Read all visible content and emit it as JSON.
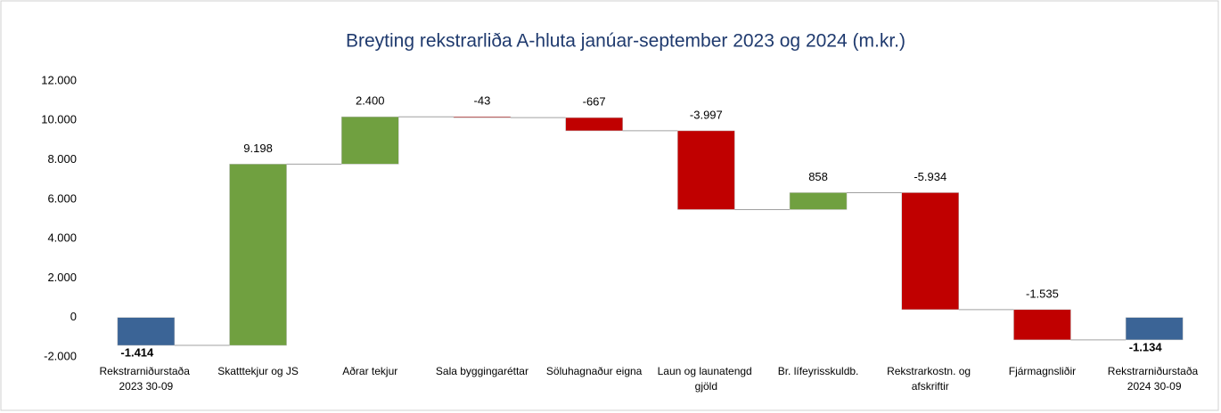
{
  "chart_data": {
    "type": "waterfall",
    "title": "Breyting rekstrarliða A-hluta janúar-september 2023 og 2024 (m.kr.)",
    "categories": [
      "Rekstrarniðurstaða 2023 30-09",
      "Skatttekjur og JS",
      "Aðrar tekjur",
      "Sala byggingaréttar",
      "Söluhagnaður eigna",
      "Laun og launatengd gjöld",
      "Br. lífeyrisskuldb.",
      "Rekstrarkostn. og afskriftir",
      "Fjármagnsliðir",
      "Rekstrarniðurstaða 2024 30-09"
    ],
    "values": [
      -1414,
      9198,
      2400,
      -43,
      -667,
      -3997,
      858,
      -5934,
      -1535,
      -1134
    ],
    "value_labels": [
      "-1.414",
      "9.198",
      "2.400",
      "-43",
      "-667",
      "-3.997",
      "858",
      "-5.934",
      "-1.535",
      "-1.134"
    ],
    "measure": [
      "total",
      "relative",
      "relative",
      "relative",
      "relative",
      "relative",
      "relative",
      "relative",
      "relative",
      "total"
    ],
    "colors": {
      "total": "#3b6496",
      "increase": "#70a040",
      "decrease": "#c00000"
    },
    "ylim": [
      -2000,
      12000
    ],
    "yticks": [
      {
        "value": -2000,
        "label": "-2.000"
      },
      0,
      {
        "value": 2000,
        "label": "2.000"
      },
      {
        "value": 4000,
        "label": "4.000"
      },
      {
        "value": 6000,
        "label": "6.000"
      },
      {
        "value": 8000,
        "label": "8.000"
      },
      {
        "value": 10000,
        "label": "10.000"
      },
      {
        "value": 12000,
        "label": "12.000"
      }
    ],
    "grid": false
  }
}
